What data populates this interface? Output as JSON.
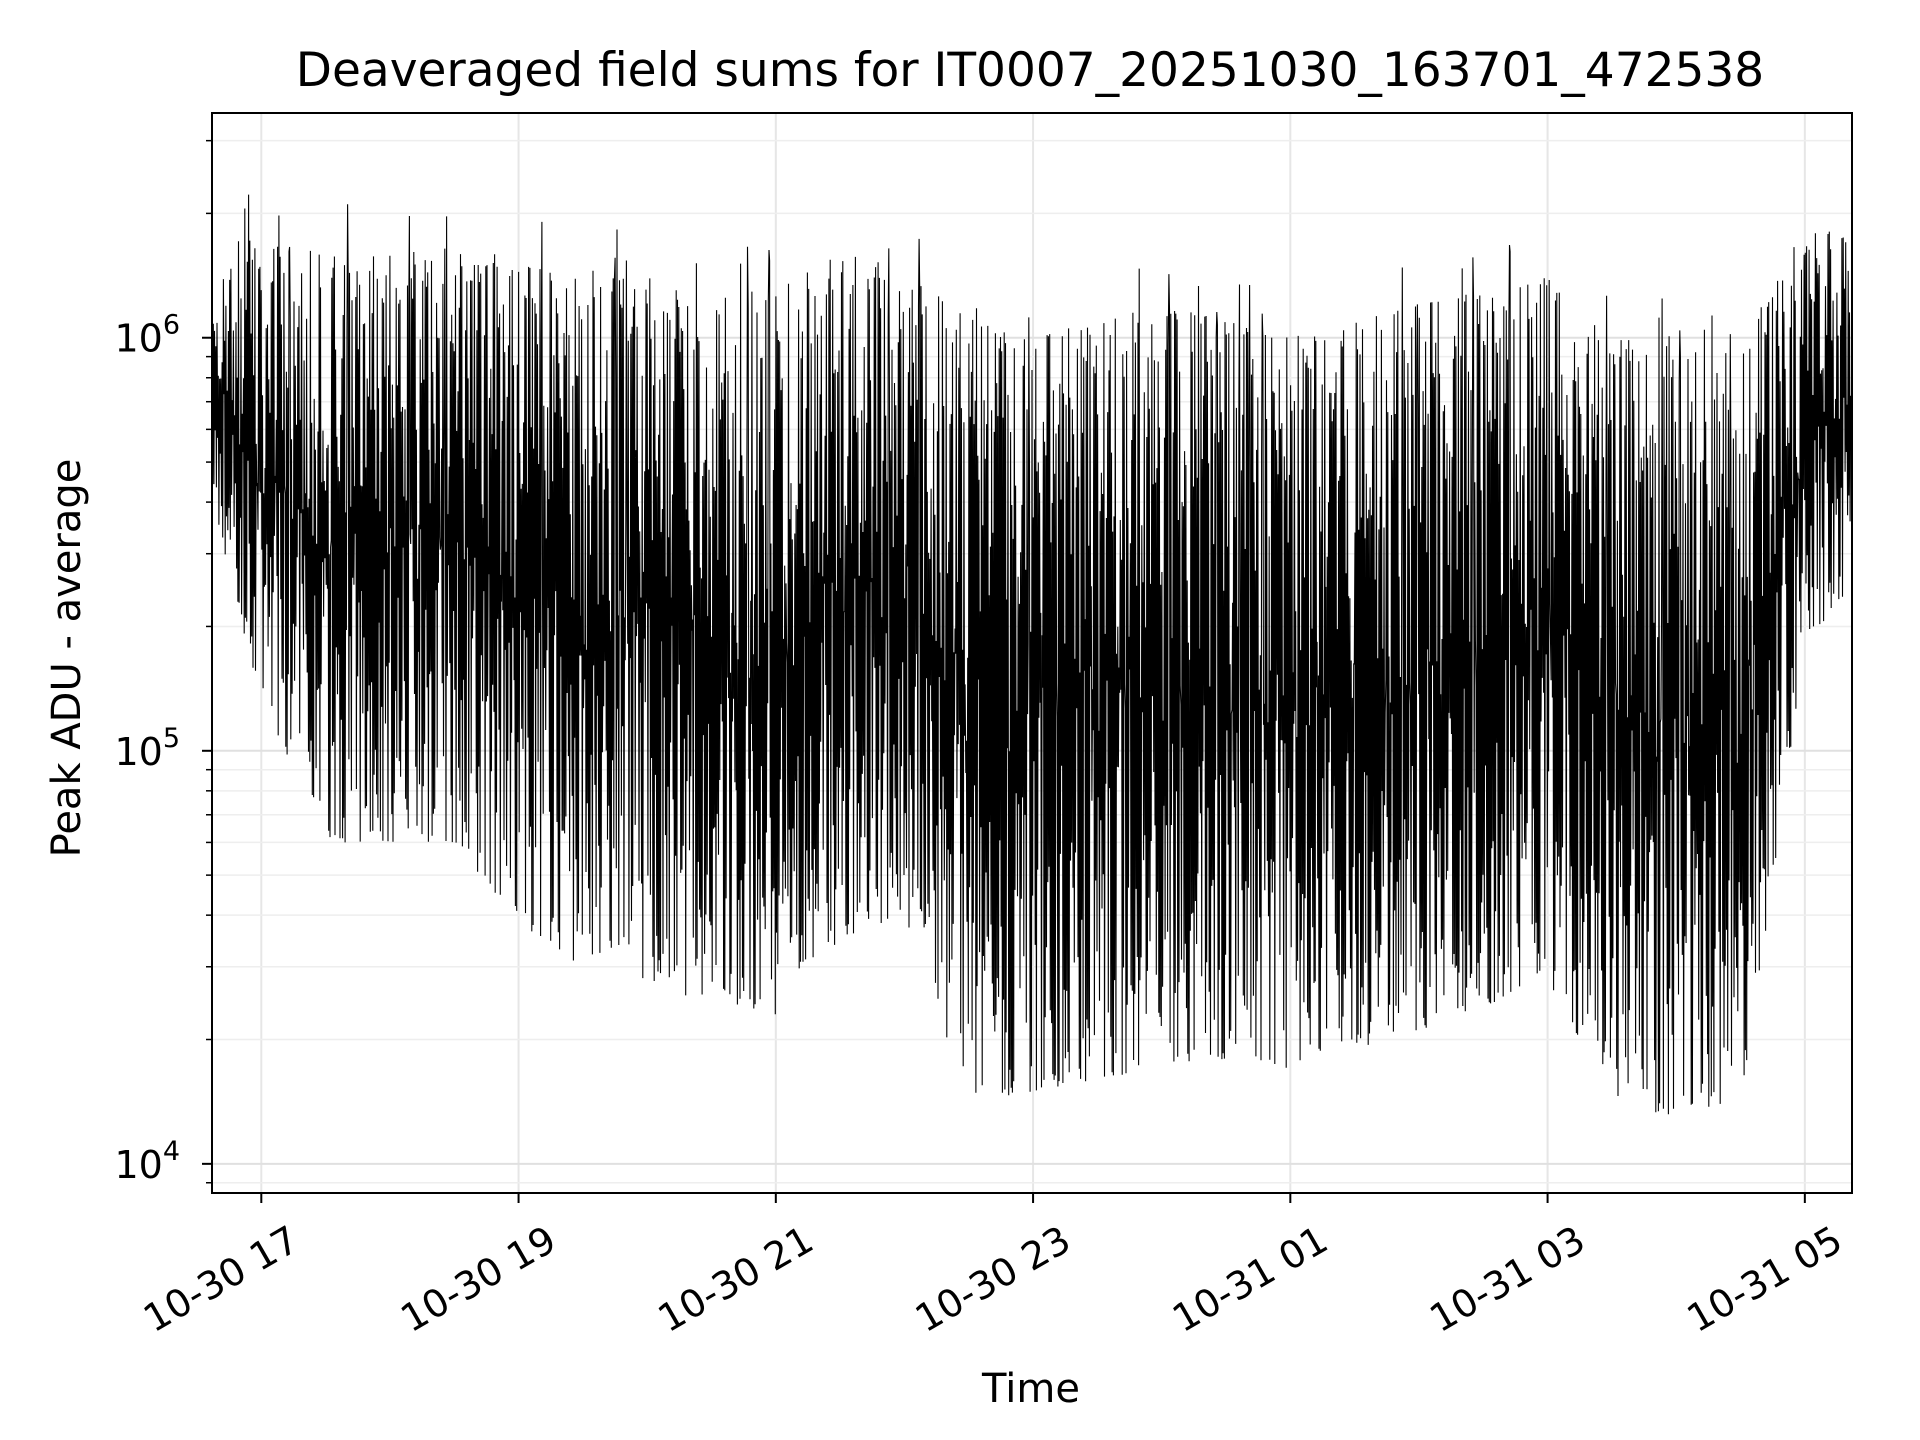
{
  "chart_data": {
    "type": "line",
    "title": "Deaveraged field sums for IT0007_20251030_163701_472538",
    "xlabel": "Time",
    "ylabel": "Peak ADU - average",
    "yscale": "log",
    "ylim": [
      8500,
      3500000
    ],
    "xlim": [
      "2025-10-30 16:37",
      "2025-10-31 05:22"
    ],
    "grid": true,
    "line_color": "#000000",
    "x_ticks": [
      "10-30 17",
      "10-30 19",
      "10-30 21",
      "10-30 23",
      "10-31 01",
      "10-31 03",
      "10-31 05"
    ],
    "y_ticks": [
      {
        "value": 10000,
        "base": "10",
        "exp": "4"
      },
      {
        "value": 100000,
        "base": "10",
        "exp": "5"
      },
      {
        "value": 1000000,
        "base": "10",
        "exp": "6"
      }
    ],
    "series": [
      {
        "x": [
          "2025-10-30 16:37",
          "2025-10-30 17:00",
          "2025-10-30 17:30",
          "2025-10-30 18:00",
          "2025-10-30 18:30",
          "2025-10-30 19:00",
          "2025-10-30 19:30",
          "2025-10-30 20:00",
          "2025-10-30 20:30",
          "2025-10-30 21:00",
          "2025-10-30 21:30",
          "2025-10-30 22:00",
          "2025-10-30 22:30",
          "2025-10-30 23:00",
          "2025-10-30 23:30",
          "2025-10-31 00:00",
          "2025-10-31 00:30",
          "2025-10-31 01:00",
          "2025-10-31 01:30",
          "2025-10-31 02:00",
          "2025-10-31 02:30",
          "2025-10-31 03:00",
          "2025-10-31 03:30",
          "2025-10-31 04:00",
          "2025-10-31 04:30",
          "2025-10-31 05:00",
          "2025-10-31 05:22"
        ],
        "upper": [
          1800000,
          1700000,
          1600000,
          1600000,
          1500000,
          1500000,
          1400000,
          1400000,
          1300000,
          1300000,
          1600000,
          1500000,
          1100000,
          1000000,
          1100000,
          1200000,
          1100000,
          1000000,
          1100000,
          1200000,
          1300000,
          1400000,
          1000000,
          950000,
          900000,
          1900000,
          1800000
        ],
        "lower": [
          400000,
          130000,
          60000,
          60000,
          60000,
          38000,
          30000,
          28000,
          24000,
          23000,
          35000,
          40000,
          14000,
          15000,
          16000,
          17000,
          18000,
          17000,
          19000,
          21000,
          24000,
          28000,
          14000,
          13000,
          13000,
          180000,
          250000
        ]
      }
    ]
  }
}
